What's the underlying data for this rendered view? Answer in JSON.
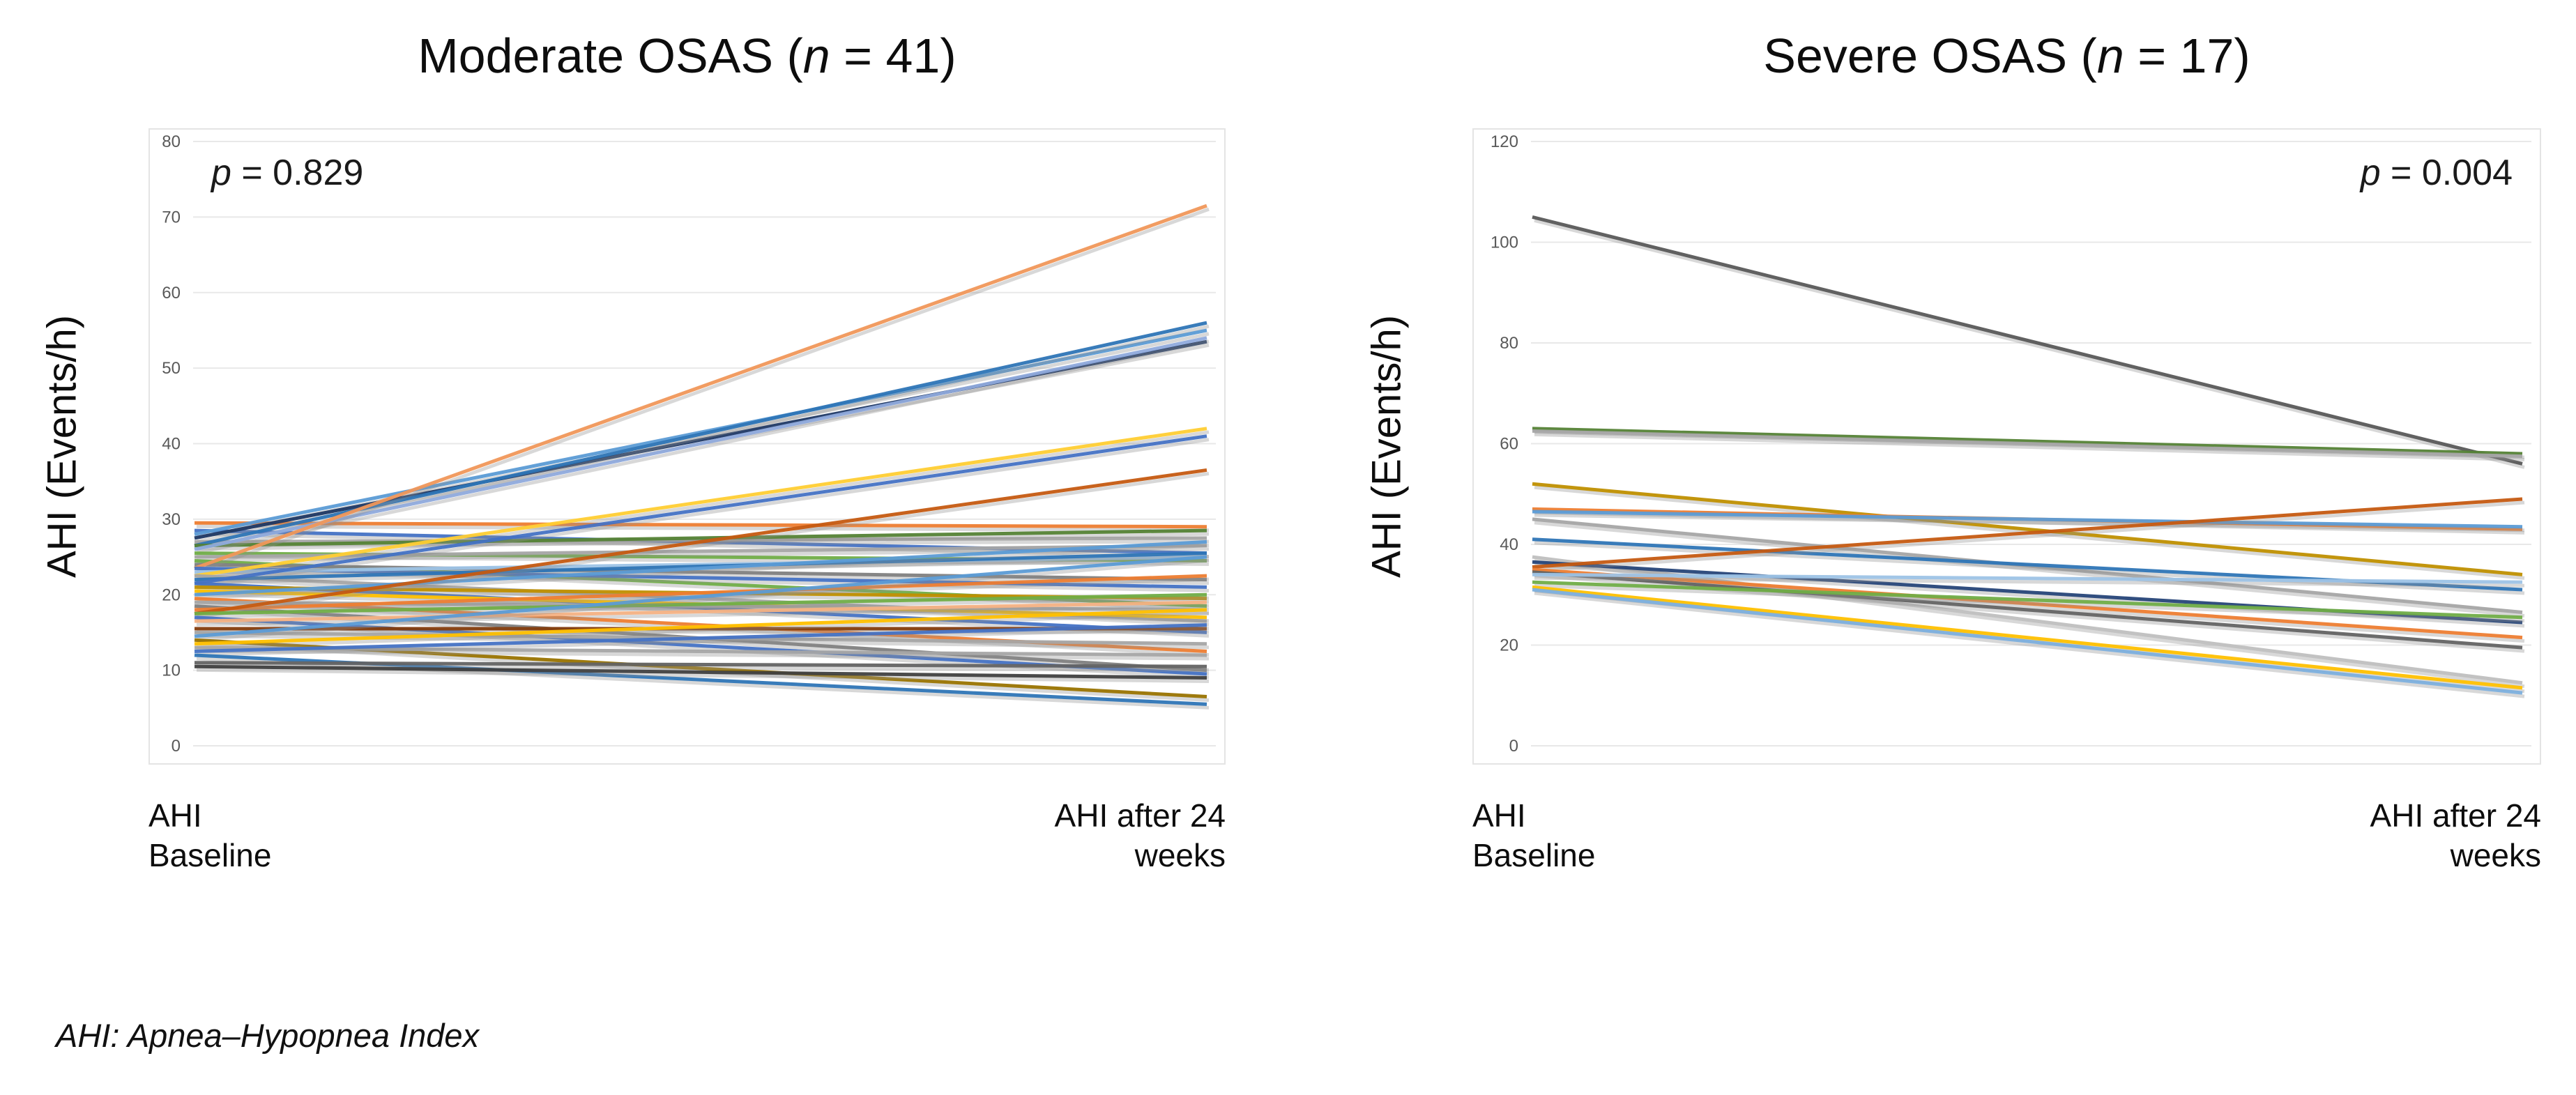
{
  "footnote": "AHI: Apnea–Hypopnea Index",
  "chart_data": [
    {
      "type": "line",
      "subtype": "paired-slope",
      "title_prefix": "Moderate OSAS (",
      "title_n_symbol": "n",
      "title_suffix": " = 41)",
      "n": 41,
      "p_symbol": "p",
      "p_rest": " = 0.829",
      "p_align": "left",
      "ylabel": "AHI (Events/h)",
      "categories": [
        "AHI Baseline",
        "AHI after 24 weeks"
      ],
      "x_tick_left": [
        "AHI",
        "Baseline"
      ],
      "x_tick_right": [
        "AHI after 24",
        "weeks"
      ],
      "ylim": [
        0,
        80
      ],
      "ytick_step": 10,
      "yticks": [
        0,
        10,
        20,
        30,
        40,
        50,
        60,
        70,
        80
      ],
      "grid": true,
      "legend": "none",
      "series": [
        {
          "color": "#ED7D31",
          "values": [
            29.5,
            29
          ]
        },
        {
          "color": "#4472C4",
          "values": [
            28.5,
            25.5
          ]
        },
        {
          "color": "#5B9BD5",
          "values": [
            28,
            55
          ]
        },
        {
          "color": "#1F3864",
          "values": [
            27.5,
            53.5
          ]
        },
        {
          "color": "#A5A5A5",
          "values": [
            27,
            27.5
          ]
        },
        {
          "color": "#2E75B6",
          "values": [
            26.5,
            56
          ]
        },
        {
          "color": "#548235",
          "values": [
            26.5,
            28.5
          ]
        },
        {
          "color": "#8FAADC",
          "values": [
            26,
            54
          ]
        },
        {
          "color": "#70AD47",
          "values": [
            25.5,
            24.5
          ]
        },
        {
          "color": "#A5A5A5",
          "values": [
            25,
            26.5
          ]
        },
        {
          "color": "#70AD47",
          "values": [
            24.5,
            18.5
          ]
        },
        {
          "color": "#7F7F7F",
          "values": [
            24,
            22
          ]
        },
        {
          "color": "#F0975A",
          "values": [
            23.5,
            71.5
          ]
        },
        {
          "color": "#4472C4",
          "values": [
            23.5,
            21
          ]
        },
        {
          "color": "#9DC3E6",
          "values": [
            23,
            25
          ]
        },
        {
          "color": "#FFCD33",
          "values": [
            22.5,
            42
          ]
        },
        {
          "color": "#A5A5A5",
          "values": [
            22.5,
            16.5
          ]
        },
        {
          "color": "#2E75B6",
          "values": [
            22,
            25.5
          ]
        },
        {
          "color": "#4472C4",
          "values": [
            21.5,
            41
          ]
        },
        {
          "color": "#4472C4",
          "values": [
            21.5,
            15
          ]
        },
        {
          "color": "#BF8F00",
          "values": [
            21,
            19.5
          ]
        },
        {
          "color": "#FFC000",
          "values": [
            20.5,
            17
          ]
        },
        {
          "color": "#5B9BD5",
          "values": [
            20,
            27
          ]
        },
        {
          "color": "#ED7D31",
          "values": [
            19.5,
            12.5
          ]
        },
        {
          "color": "#A5A5A5",
          "values": [
            19,
            18
          ]
        },
        {
          "color": "#808080",
          "values": [
            18.5,
            10
          ]
        },
        {
          "color": "#ED7D31",
          "values": [
            18,
            22.5
          ]
        },
        {
          "color": "#C55A11",
          "values": [
            17.5,
            36.5
          ]
        },
        {
          "color": "#70AD47",
          "values": [
            17.5,
            20
          ]
        },
        {
          "color": "#4472C4",
          "values": [
            17,
            9.5
          ]
        },
        {
          "color": "#F4B183",
          "values": [
            16.5,
            19
          ]
        },
        {
          "color": "#843C0C",
          "values": [
            15.5,
            15.5
          ]
        },
        {
          "color": "#A5A5A5",
          "values": [
            15,
            13.5
          ]
        },
        {
          "color": "#5B9BD5",
          "values": [
            14.5,
            25
          ]
        },
        {
          "color": "#997300",
          "values": [
            14,
            6.5
          ]
        },
        {
          "color": "#FFC000",
          "values": [
            13.5,
            18
          ]
        },
        {
          "color": "#A5A5A5",
          "values": [
            13,
            12
          ]
        },
        {
          "color": "#4472C4",
          "values": [
            12.5,
            16
          ]
        },
        {
          "color": "#2E75B6",
          "values": [
            12,
            5.5
          ]
        },
        {
          "color": "#636363",
          "values": [
            11,
            10.5
          ]
        },
        {
          "color": "#404040",
          "values": [
            10.5,
            9
          ]
        }
      ]
    },
    {
      "type": "line",
      "subtype": "paired-slope",
      "title_prefix": "Severe OSAS (",
      "title_n_symbol": "n",
      "title_suffix": " = 17)",
      "n": 17,
      "p_symbol": "p",
      "p_rest": " = 0.004",
      "p_align": "right",
      "ylabel": "AHI (Events/h)",
      "categories": [
        "AHI Baseline",
        "AHI after 24 weeks"
      ],
      "x_tick_left": [
        "AHI",
        "Baseline"
      ],
      "x_tick_right": [
        "AHI after 24",
        "weeks"
      ],
      "ylim": [
        0,
        120
      ],
      "ytick_step": 20,
      "yticks": [
        0,
        20,
        40,
        60,
        80,
        100,
        120
      ],
      "grid": true,
      "legend": "none",
      "series": [
        {
          "color": "#595959",
          "values": [
            105,
            56
          ]
        },
        {
          "color": "#548235",
          "values": [
            63,
            58
          ]
        },
        {
          "color": "#A5A5A5",
          "values": [
            62.5,
            57.5
          ]
        },
        {
          "color": "#BF8F00",
          "values": [
            52,
            34
          ]
        },
        {
          "color": "#ED7D31",
          "values": [
            47,
            43
          ]
        },
        {
          "color": "#5B9BD5",
          "values": [
            46.5,
            43.5
          ]
        },
        {
          "color": "#A5A5A5",
          "values": [
            45,
            26.5
          ]
        },
        {
          "color": "#2E75B6",
          "values": [
            41,
            31
          ]
        },
        {
          "color": "#BFBFBF",
          "values": [
            37.5,
            12.5
          ]
        },
        {
          "color": "#264478",
          "values": [
            36.5,
            24.5
          ]
        },
        {
          "color": "#C55A11",
          "values": [
            35.5,
            49
          ]
        },
        {
          "color": "#ED7D31",
          "values": [
            35,
            21.5
          ]
        },
        {
          "color": "#636363",
          "values": [
            34.5,
            19.5
          ]
        },
        {
          "color": "#9DC3E6",
          "values": [
            34,
            32.5
          ]
        },
        {
          "color": "#70AD47",
          "values": [
            32.5,
            25.5
          ]
        },
        {
          "color": "#FFC000",
          "values": [
            31.5,
            11.5
          ]
        },
        {
          "color": "#7CAFDD",
          "values": [
            31,
            10.5
          ]
        }
      ]
    }
  ],
  "style": {
    "grid_color": "#e8e8e8",
    "frame_color": "#e4e4e4",
    "tick_color": "#595959",
    "shadow_color": "#909090"
  }
}
